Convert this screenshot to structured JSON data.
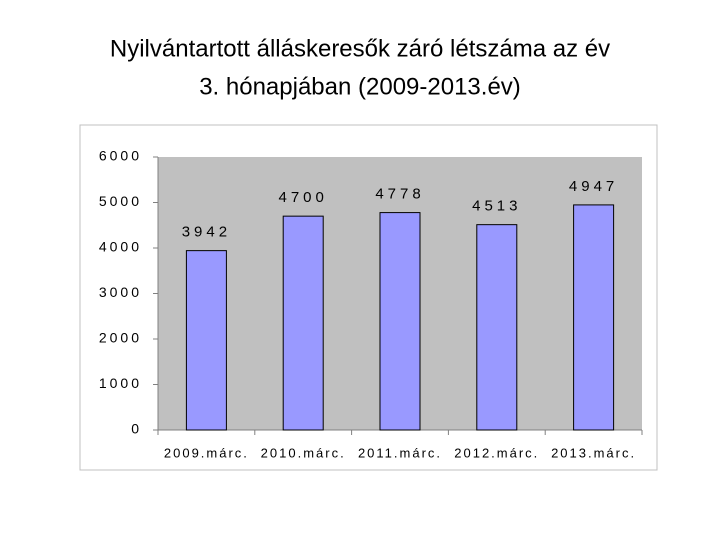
{
  "chart_data": {
    "type": "bar",
    "title": [
      "Nyilvántartott álláskeresők záró létszáma az év",
      "3. hónapjában (2009-2013.év)"
    ],
    "categories": [
      "2009.márc.",
      "2010.márc.",
      "2011.márc.",
      "2012.márc.",
      "2013.márc."
    ],
    "values": [
      3942,
      4700,
      4778,
      4513,
      4947
    ],
    "color": "#9999ff",
    "ylim": [
      0,
      6000
    ],
    "yticks": [
      0,
      1000,
      2000,
      3000,
      4000,
      5000,
      6000
    ],
    "grid": false
  }
}
